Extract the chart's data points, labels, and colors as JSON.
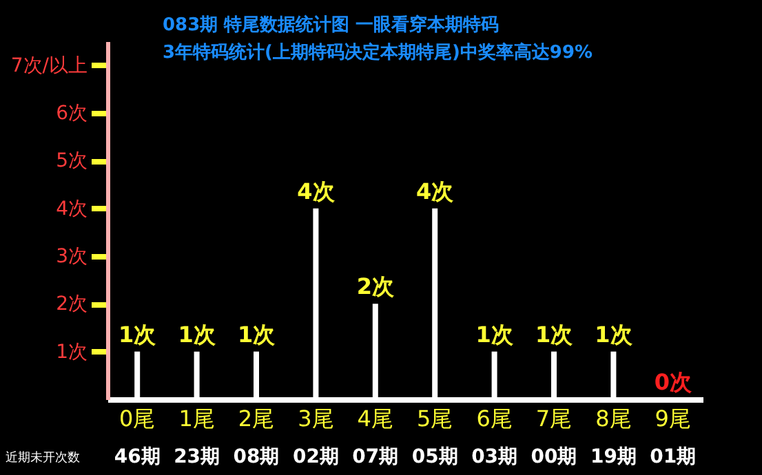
{
  "chart_data": {
    "type": "bar",
    "title": "083期 特尾数据统计图 一眼看穿本期特码",
    "subtitle": "3年特码统计(上期特码决定本期特尾)中奖率高达99%",
    "categories": [
      "0尾",
      "1尾",
      "2尾",
      "3尾",
      "4尾",
      "5尾",
      "6尾",
      "7尾",
      "8尾",
      "9尾"
    ],
    "values": [
      1,
      1,
      1,
      4,
      2,
      4,
      1,
      1,
      1,
      0
    ],
    "colors": [
      "#ffffff",
      "#ffffff",
      "#ffffff",
      "#ffffff",
      "#ffffff",
      "#ffffff",
      "#ffffff",
      "#ffffff",
      "#ffffff",
      "#ff2020"
    ],
    "value_labels": [
      "1次",
      "1次",
      "1次",
      "4次",
      "2次",
      "4次",
      "1次",
      "1次",
      "1次",
      "0次"
    ],
    "ylim": [
      0,
      7.5
    ],
    "yticks": [
      {
        "value": 1,
        "label": "1次"
      },
      {
        "value": 2,
        "label": "2次"
      },
      {
        "value": 3,
        "label": "3次"
      },
      {
        "value": 4,
        "label": "4次"
      },
      {
        "value": 5,
        "label": "5次"
      },
      {
        "value": 6,
        "label": "6次"
      },
      {
        "value": 7,
        "label": "7次/以上"
      }
    ],
    "grid": false,
    "annotations": [
      "近期未开次数",
      "46期",
      "23期",
      "08期",
      "02期",
      "07期",
      "05期",
      "03期",
      "00期",
      "19期",
      "01期"
    ]
  }
}
